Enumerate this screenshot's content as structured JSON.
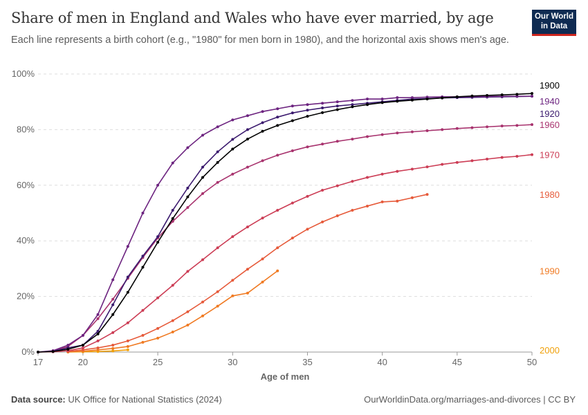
{
  "header": {
    "title": "Share of men in England and Wales who have ever married, by age",
    "subtitle": "Each line represents a birth cohort (e.g., \"1980\" for men born in 1980), and the horizontal axis shows men's age.",
    "logo": "Our World in Data"
  },
  "footer": {
    "source_label": "Data source:",
    "source": "UK Office for National Statistics (2024)",
    "url": "OurWorldinData.org/marriages-and-divorces | CC BY"
  },
  "chart_data": {
    "type": "line",
    "title": "Share of men in England and Wales who have ever married, by age",
    "xlabel": "Age of men",
    "ylabel": "",
    "xlim": [
      17,
      50
    ],
    "ylim": [
      0,
      100
    ],
    "xticks": [
      17,
      20,
      25,
      30,
      35,
      40,
      45,
      50
    ],
    "yticks": [
      {
        "v": 0,
        "label": "0%"
      },
      {
        "v": 20,
        "label": "20%"
      },
      {
        "v": 40,
        "label": "40%"
      },
      {
        "v": 60,
        "label": "60%"
      },
      {
        "v": 80,
        "label": "80%"
      },
      {
        "v": 100,
        "label": "100%"
      }
    ],
    "grid": true,
    "series": [
      {
        "name": "1900",
        "color": "#000000",
        "start": 17,
        "values": [
          0,
          0.2,
          1,
          2.5,
          6.5,
          13.5,
          21.5,
          30.5,
          39.5,
          48,
          55.8,
          62.8,
          68.2,
          73,
          76.6,
          79.4,
          81.5,
          83.2,
          84.8,
          86.1,
          87.2,
          88.2,
          89,
          89.7,
          90.2,
          90.6,
          91,
          91.4,
          91.8,
          92.1,
          92.3,
          92.5,
          92.7,
          93
        ]
      },
      {
        "name": "1940",
        "color": "#6d2480",
        "start": 17,
        "values": [
          0,
          0.5,
          2.5,
          6,
          13.5,
          26,
          38,
          50,
          60,
          68,
          73.5,
          78,
          81,
          83.5,
          85,
          86.5,
          87.5,
          88.5,
          89,
          89.5,
          90,
          90.5,
          91,
          91,
          91.5,
          91.5,
          91.7,
          91.8,
          91.8,
          91.9,
          91.9,
          92,
          92,
          92
        ]
      },
      {
        "name": "1920",
        "color": "#3b1a6e",
        "start": 17,
        "values": [
          0,
          0.3,
          1.5,
          2.5,
          7.5,
          17,
          27,
          34.5,
          41.5,
          51,
          59,
          66.5,
          72,
          76.5,
          80,
          82.5,
          84.5,
          86,
          87,
          87.8,
          88.5,
          89,
          89.5,
          90,
          90.5,
          91,
          91.2,
          91.4,
          91.5,
          91.6,
          91.7,
          91.8,
          91.9,
          92
        ]
      },
      {
        "name": "1960",
        "color": "#a8336e",
        "start": 17,
        "values": [
          0,
          0.3,
          2,
          6,
          12,
          19,
          26.5,
          34,
          41,
          47,
          52,
          57,
          61,
          64,
          66.5,
          68.8,
          70.8,
          72.4,
          73.8,
          74.8,
          75.8,
          76.6,
          77.5,
          78.2,
          78.8,
          79.2,
          79.6,
          80,
          80.4,
          80.7,
          81,
          81.3,
          81.5,
          81.8
        ]
      },
      {
        "name": "1970",
        "color": "#cc3d55",
        "start": 17,
        "values": [
          0,
          0.1,
          0.5,
          1.5,
          4,
          7,
          10.5,
          15,
          19.5,
          24,
          29,
          33.2,
          37.5,
          41.5,
          45,
          48.2,
          51,
          53.6,
          56,
          58.2,
          59.8,
          61.4,
          62.8,
          64,
          65,
          65.8,
          66.6,
          67.5,
          68.2,
          68.8,
          69.4,
          70,
          70.4,
          71
        ]
      },
      {
        "name": "1980",
        "color": "#e65a3a",
        "start": 19,
        "values": [
          0.2,
          0.8,
          1.5,
          2.5,
          4,
          6,
          8.5,
          11.3,
          14.5,
          18,
          21.7,
          25.8,
          29.8,
          33.5,
          37.5,
          41,
          44.2,
          46.8,
          49,
          51,
          52.5,
          54,
          54.3,
          55.5,
          56.7
        ]
      },
      {
        "name": "1990",
        "color": "#f07a22",
        "start": 19,
        "values": [
          0.1,
          0.3,
          0.8,
          1.3,
          2,
          3.5,
          5,
          7.2,
          9.7,
          13,
          16.5,
          20.2,
          21.2,
          25.2,
          29.2
        ]
      },
      {
        "name": "2000",
        "color": "#f0a00a",
        "start": 19,
        "values": [
          0,
          0.1,
          0.2,
          0.4,
          0.8
        ]
      }
    ]
  }
}
